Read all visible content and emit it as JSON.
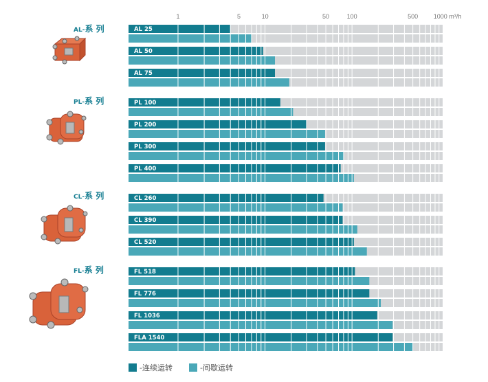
{
  "colors": {
    "continuous": "#127c8f",
    "intermittent": "#4aa8b8",
    "track": "#d4d6d8",
    "grid": "#ffffff",
    "series_label": "#167e92",
    "pump_body": "#d9623a"
  },
  "legend": {
    "continuous": "-连续运转",
    "intermittent": "-间歇运转"
  },
  "series_groups": [
    {
      "prefix": "AL-",
      "name": "系 列"
    },
    {
      "prefix": "PL-",
      "name": "系 列"
    },
    {
      "prefix": "CL-",
      "name": "系 列"
    },
    {
      "prefix": "FL-",
      "name": "系 列"
    }
  ],
  "chart_data": {
    "type": "bar",
    "orientation": "horizontal",
    "xscale": "log",
    "xlabel": "m³/h",
    "xlim": [
      0.27,
      1100
    ],
    "xticks": [
      {
        "value": 1,
        "label": "1"
      },
      {
        "value": 5,
        "label": "5"
      },
      {
        "value": 10,
        "label": "10"
      },
      {
        "value": 50,
        "label": "50"
      },
      {
        "value": 100,
        "label": "100"
      },
      {
        "value": 500,
        "label": "500"
      },
      {
        "value": 1000,
        "label": "1000 m³/h"
      }
    ],
    "grid": true,
    "legend_position": "bottom-left",
    "series_names": [
      "连续运转",
      "间歇运转"
    ],
    "groups": [
      {
        "group": "AL-系列",
        "models": [
          {
            "model": "AL 25",
            "continuous": 4,
            "intermittent": 7
          },
          {
            "model": "AL 50",
            "continuous": 9.5,
            "intermittent": 13
          },
          {
            "model": "AL 75",
            "continuous": 13,
            "intermittent": 19
          }
        ]
      },
      {
        "group": "PL-系列",
        "models": [
          {
            "model": "PL 100",
            "continuous": 15,
            "intermittent": 21
          },
          {
            "model": "PL 200",
            "continuous": 30,
            "intermittent": 49
          },
          {
            "model": "PL 300",
            "continuous": 49,
            "intermittent": 80
          },
          {
            "model": "PL 400",
            "continuous": 74,
            "intermittent": 105
          }
        ]
      },
      {
        "group": "CL-系列",
        "models": [
          {
            "model": "CL 260",
            "continuous": 47,
            "intermittent": 78
          },
          {
            "model": "CL 390",
            "continuous": 78,
            "intermittent": 115
          },
          {
            "model": "CL 520",
            "continuous": 105,
            "intermittent": 148
          }
        ]
      },
      {
        "group": "FL-系列",
        "models": [
          {
            "model": "FL 518",
            "continuous": 108,
            "intermittent": 158
          },
          {
            "model": "FL 776",
            "continuous": 158,
            "intermittent": 214
          },
          {
            "model": "FL 1036",
            "continuous": 195,
            "intermittent": 293
          },
          {
            "model": "FLA 1540",
            "continuous": 293,
            "intermittent": 500
          }
        ]
      }
    ]
  }
}
